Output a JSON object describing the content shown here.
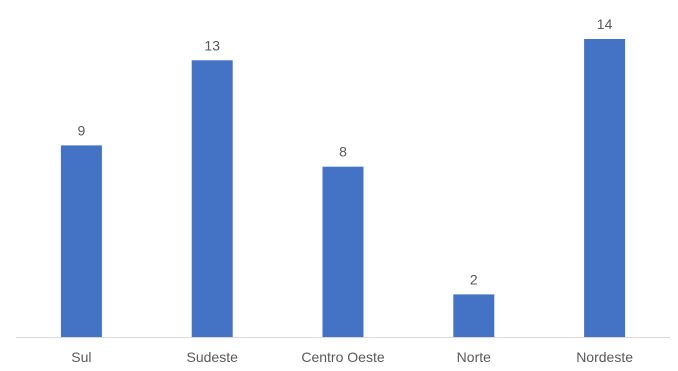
{
  "chart_data": {
    "type": "bar",
    "categories": [
      "Sul",
      "Sudeste",
      "Centro Oeste",
      "Norte",
      "Nordeste"
    ],
    "values": [
      9,
      13,
      8,
      2,
      14
    ],
    "data_labels": [
      "9",
      "13",
      "8",
      "2",
      "14"
    ],
    "title": "",
    "xlabel": "",
    "ylabel": "",
    "ylim": [
      0,
      14
    ],
    "grid": false,
    "legend": "none",
    "colors": {
      "bar": "#4472c4",
      "text": "#595959",
      "axis": "#d9d9d9"
    }
  }
}
